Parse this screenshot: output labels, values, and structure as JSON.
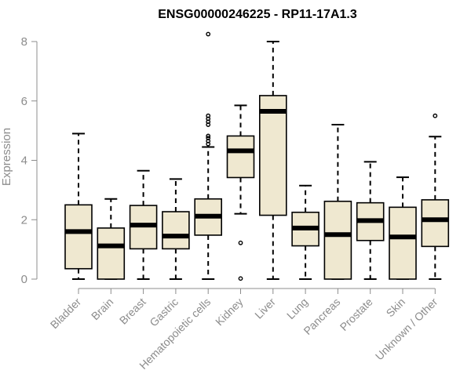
{
  "chart_data": {
    "type": "boxplot",
    "title": "ENSG00000246225 - RP11-17A1.3",
    "xlabel": "",
    "ylabel": "Expression",
    "ylim": [
      0,
      8
    ],
    "yticks": [
      0,
      2,
      4,
      6,
      8
    ],
    "box_fill": "#efe8d0",
    "categories": [
      "Bladder",
      "Brain",
      "Breast",
      "Gastric",
      "Hematopoietic cells",
      "Kidney",
      "Liver",
      "Lung",
      "Pancreas",
      "Prostate",
      "Skin",
      "Unknown / Other"
    ],
    "series": [
      {
        "name": "Bladder",
        "whisker_low": 0.0,
        "q1": 0.35,
        "median": 1.6,
        "q3": 2.5,
        "whisker_high": 4.9,
        "outliers": []
      },
      {
        "name": "Brain",
        "whisker_low": 0.0,
        "q1": 0.0,
        "median": 1.12,
        "q3": 1.72,
        "whisker_high": 2.7,
        "outliers": []
      },
      {
        "name": "Breast",
        "whisker_low": 0.0,
        "q1": 1.02,
        "median": 1.82,
        "q3": 2.48,
        "whisker_high": 3.65,
        "outliers": []
      },
      {
        "name": "Gastric",
        "whisker_low": 0.0,
        "q1": 1.02,
        "median": 1.45,
        "q3": 2.27,
        "whisker_high": 3.37,
        "outliers": []
      },
      {
        "name": "Hematopoietic cells",
        "whisker_low": 0.0,
        "q1": 1.48,
        "median": 2.12,
        "q3": 2.7,
        "whisker_high": 4.45,
        "outliers": [
          4.55,
          4.65,
          4.75,
          4.82,
          5.2,
          5.3,
          5.4,
          5.5,
          8.25
        ]
      },
      {
        "name": "Kidney",
        "whisker_low": 2.2,
        "q1": 3.42,
        "median": 4.32,
        "q3": 4.82,
        "whisker_high": 5.85,
        "outliers": [
          1.22,
          0.02
        ]
      },
      {
        "name": "Liver",
        "whisker_low": 0.0,
        "q1": 2.15,
        "median": 5.65,
        "q3": 6.18,
        "whisker_high": 8.0,
        "outliers": []
      },
      {
        "name": "Lung",
        "whisker_low": 0.0,
        "q1": 1.12,
        "median": 1.72,
        "q3": 2.25,
        "whisker_high": 3.15,
        "outliers": []
      },
      {
        "name": "Pancreas",
        "whisker_low": 0.0,
        "q1": 0.0,
        "median": 1.5,
        "q3": 2.62,
        "whisker_high": 5.2,
        "outliers": []
      },
      {
        "name": "Prostate",
        "whisker_low": 0.0,
        "q1": 1.3,
        "median": 1.97,
        "q3": 2.57,
        "whisker_high": 3.95,
        "outliers": []
      },
      {
        "name": "Skin",
        "whisker_low": 0.0,
        "q1": 0.0,
        "median": 1.42,
        "q3": 2.42,
        "whisker_high": 3.43,
        "outliers": []
      },
      {
        "name": "Unknown / Other",
        "whisker_low": 0.0,
        "q1": 1.1,
        "median": 2.0,
        "q3": 2.67,
        "whisker_high": 4.8,
        "outliers": [
          5.5
        ]
      }
    ]
  }
}
